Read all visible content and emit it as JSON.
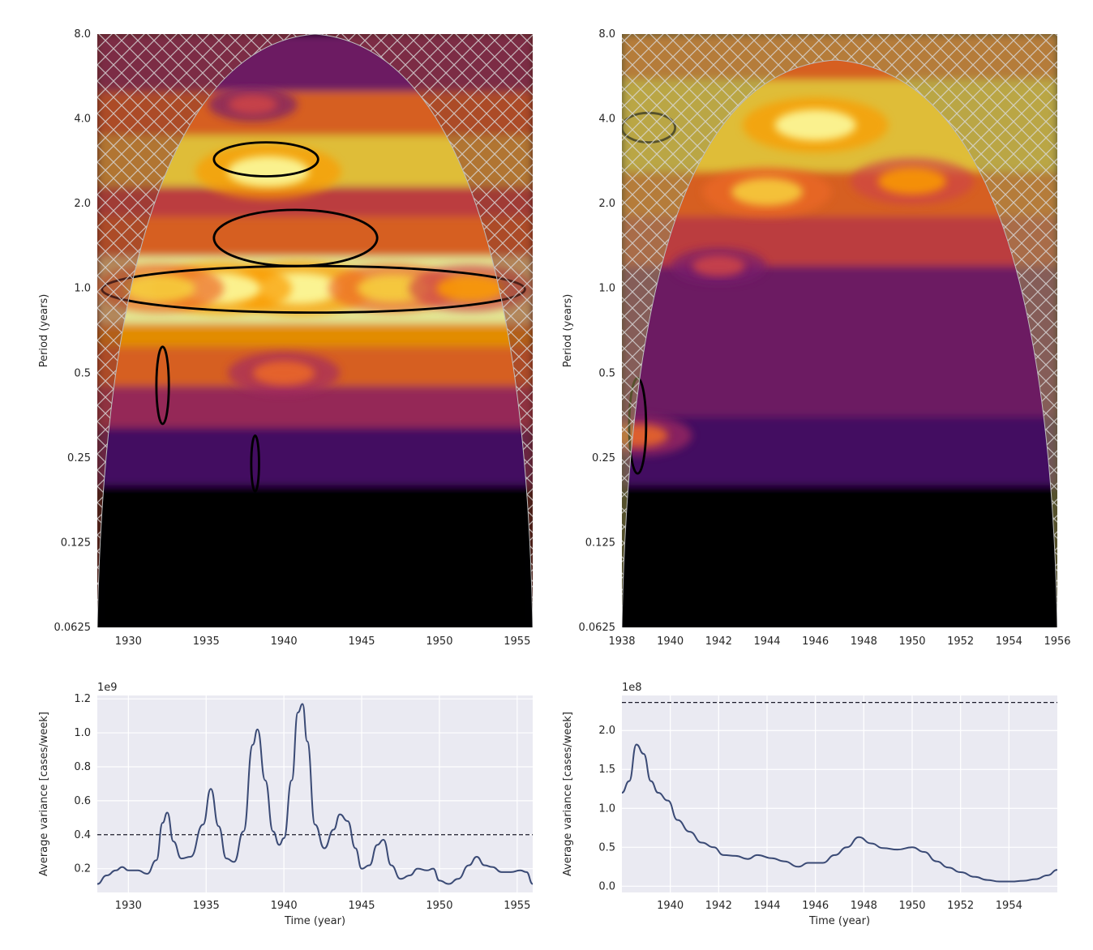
{
  "chart_data": [
    {
      "type": "heatmap",
      "title": "",
      "xlabel": "",
      "ylabel": "Period (years)",
      "xlim": [
        1928,
        1956
      ],
      "ylim": [
        0.0625,
        8.0
      ],
      "yscale": "log2",
      "x_ticks": [
        1930,
        1935,
        1940,
        1945,
        1950,
        1955
      ],
      "y_ticks": [
        "0.0625",
        "0.125",
        "0.25",
        "0.5",
        "1.0",
        "2.0",
        "4.0",
        "8.0"
      ],
      "colormap": "inferno",
      "cone_of_influence": true,
      "significance_contours": [
        {
          "center": [
            1938.8,
            2.8
          ],
          "period_span": [
            2.5,
            3.3
          ],
          "year_span": [
            1935.5,
            1942.2
          ]
        },
        {
          "center": [
            1942,
            1.0
          ],
          "period_span": [
            0.82,
            1.2
          ],
          "year_span": [
            1928.3,
            1955.5
          ]
        },
        {
          "center": [
            1940.3,
            1.55
          ],
          "period_span": [
            1.2,
            1.9
          ],
          "year_span": [
            1935.5,
            1946
          ]
        },
        {
          "center": [
            1932.2,
            0.45
          ],
          "period_span": [
            0.33,
            0.62
          ],
          "year_span": [
            1931.8,
            1932.6
          ]
        },
        {
          "center": [
            1938.1,
            0.25
          ],
          "period_span": [
            0.19,
            0.3
          ],
          "year_span": [
            1937.9,
            1938.4
          ]
        }
      ],
      "hot_spots": [
        {
          "x": 1939,
          "y": 2.6,
          "v": 1.0
        },
        {
          "x": 1941,
          "y": 1.0,
          "v": 1.0
        },
        {
          "x": 1936,
          "y": 1.0,
          "v": 0.95
        },
        {
          "x": 1947,
          "y": 1.0,
          "v": 0.85
        },
        {
          "x": 1952,
          "y": 1.0,
          "v": 0.8
        },
        {
          "x": 1932,
          "y": 1.0,
          "v": 0.85
        },
        {
          "x": 1940,
          "y": 0.5,
          "v": 0.7
        },
        {
          "x": 1938,
          "y": 4.5,
          "v": 0.5
        }
      ]
    },
    {
      "type": "heatmap",
      "title": "",
      "xlabel": "",
      "ylabel": "Period (years)",
      "xlim": [
        1938,
        1956
      ],
      "ylim": [
        0.0625,
        8.0
      ],
      "yscale": "log2",
      "x_ticks": [
        1938,
        1940,
        1942,
        1944,
        1946,
        1948,
        1950,
        1952,
        1954,
        1956
      ],
      "y_ticks": [
        "0.0625",
        "0.125",
        "0.25",
        "0.5",
        "1.0",
        "2.0",
        "4.0",
        "8.0"
      ],
      "colormap": "inferno",
      "cone_of_influence": true,
      "significance_contours": [
        {
          "center": [
            1938.6,
            0.33
          ],
          "period_span": [
            0.22,
            0.48
          ],
          "year_span": [
            1938.3,
            1939.0
          ]
        },
        {
          "center": [
            1939.1,
            3.9
          ],
          "period_span": [
            3.3,
            4.2
          ],
          "year_span": [
            1938.0,
            1940.2
          ]
        }
      ],
      "hot_spots": [
        {
          "x": 1946,
          "y": 3.8,
          "v": 1.0
        },
        {
          "x": 1944,
          "y": 2.2,
          "v": 0.85
        },
        {
          "x": 1950,
          "y": 2.4,
          "v": 0.8
        },
        {
          "x": 1942,
          "y": 1.2,
          "v": 0.55
        },
        {
          "x": 1938.7,
          "y": 0.3,
          "v": 0.65
        }
      ]
    },
    {
      "type": "line",
      "title": "",
      "xlabel": "Time (year)",
      "ylabel": "Average variance [cases/week]",
      "offset_label": "1e9",
      "xlim": [
        1928,
        1956
      ],
      "ylim": [
        0.06,
        1.22
      ],
      "x_ticks": [
        1930,
        1935,
        1940,
        1945,
        1950,
        1955
      ],
      "y_ticks": [
        "0.2",
        "0.4",
        "0.6",
        "0.8",
        "1.0",
        "1.2"
      ],
      "significance_level": 0.4,
      "series": [
        {
          "x": [
            1928.0,
            1928.6,
            1929.2,
            1929.6,
            1930.0,
            1930.6,
            1931.2,
            1931.8,
            1932.2,
            1932.5,
            1932.9,
            1933.4,
            1934.0,
            1934.8,
            1935.3,
            1935.8,
            1936.3,
            1936.8,
            1937.4,
            1938.0,
            1938.3,
            1938.8,
            1939.3,
            1939.7,
            1940.0,
            1940.5,
            1940.9,
            1941.2,
            1941.5,
            1942.0,
            1942.6,
            1943.2,
            1943.6,
            1944.1,
            1944.6,
            1945.0,
            1945.5,
            1946.0,
            1946.4,
            1946.9,
            1947.5,
            1948.1,
            1948.6,
            1949.2,
            1949.6,
            1950.0,
            1950.6,
            1951.2,
            1951.9,
            1952.4,
            1952.9,
            1953.4,
            1954.0,
            1954.6,
            1955.2,
            1955.6,
            1956.0
          ],
          "y": [
            0.11,
            0.16,
            0.19,
            0.21,
            0.19,
            0.19,
            0.17,
            0.25,
            0.47,
            0.53,
            0.36,
            0.26,
            0.27,
            0.46,
            0.67,
            0.45,
            0.26,
            0.24,
            0.42,
            0.93,
            1.02,
            0.72,
            0.42,
            0.34,
            0.38,
            0.72,
            1.12,
            1.17,
            0.95,
            0.46,
            0.32,
            0.43,
            0.52,
            0.48,
            0.32,
            0.2,
            0.22,
            0.34,
            0.37,
            0.22,
            0.14,
            0.16,
            0.2,
            0.19,
            0.2,
            0.13,
            0.11,
            0.14,
            0.22,
            0.27,
            0.22,
            0.21,
            0.18,
            0.18,
            0.19,
            0.18,
            0.11
          ]
        }
      ]
    },
    {
      "type": "line",
      "title": "",
      "xlabel": "Time (year)",
      "ylabel": "Average variance [cases/week]",
      "offset_label": "1e8",
      "xlim": [
        1938,
        1956
      ],
      "ylim": [
        -0.08,
        2.45
      ],
      "x_ticks": [
        1940,
        1942,
        1944,
        1946,
        1948,
        1950,
        1952,
        1954
      ],
      "y_ticks": [
        "0.0",
        "0.5",
        "1.0",
        "1.5",
        "2.0"
      ],
      "significance_level": 2.36,
      "series": [
        {
          "x": [
            1938.0,
            1938.3,
            1938.6,
            1938.9,
            1939.2,
            1939.5,
            1939.9,
            1940.3,
            1940.8,
            1941.3,
            1941.8,
            1942.2,
            1942.7,
            1943.2,
            1943.6,
            1944.2,
            1944.7,
            1945.3,
            1945.7,
            1946.3,
            1946.8,
            1947.3,
            1947.8,
            1948.3,
            1948.8,
            1949.4,
            1950.0,
            1950.5,
            1951.0,
            1951.5,
            1952.0,
            1952.6,
            1953.1,
            1953.6,
            1954.1,
            1954.6,
            1955.1,
            1955.6,
            1956.0
          ],
          "y": [
            1.2,
            1.35,
            1.82,
            1.7,
            1.35,
            1.2,
            1.1,
            0.85,
            0.7,
            0.56,
            0.5,
            0.4,
            0.39,
            0.35,
            0.4,
            0.36,
            0.32,
            0.25,
            0.3,
            0.3,
            0.4,
            0.5,
            0.63,
            0.55,
            0.49,
            0.47,
            0.5,
            0.44,
            0.32,
            0.24,
            0.18,
            0.12,
            0.08,
            0.06,
            0.06,
            0.07,
            0.09,
            0.14,
            0.21
          ]
        }
      ]
    }
  ]
}
